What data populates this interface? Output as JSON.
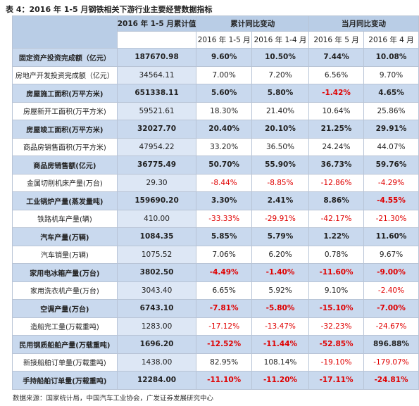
{
  "title": "表 4：2016 年 1-5 月钢铁相关下游行业主要经营数据指标",
  "table": {
    "header": {
      "group_cumulative_value": "2016 年 1-5 月累计值",
      "group_cumulative_yoy": "累计同比变动",
      "group_monthly_yoy": "当月同比变动",
      "sub": [
        "2016 年 1-5 月",
        "2016 年 1-4 月",
        "2016 年 5 月",
        "2016 年 4 月"
      ]
    },
    "rows": [
      {
        "emphasis": true,
        "cells": [
          "固定资产投资完成额（亿元）",
          "187670.98",
          "9.60%",
          "10.50%",
          "7.44%",
          "10.08%"
        ]
      },
      {
        "emphasis": false,
        "cells": [
          "房地产开发投资完成额（亿元）",
          "34564.11",
          "7.00%",
          "7.20%",
          "6.56%",
          "9.70%"
        ]
      },
      {
        "emphasis": true,
        "cells": [
          "房屋施工面积(万平方米)",
          "651338.11",
          "5.60%",
          "5.80%",
          "-1.42%",
          "4.65%"
        ]
      },
      {
        "emphasis": false,
        "cells": [
          "房屋新开工面积(万平方米)",
          "59521.61",
          "18.30%",
          "21.40%",
          "10.64%",
          "25.86%"
        ]
      },
      {
        "emphasis": true,
        "cells": [
          "房屋竣工面积(万平方米)",
          "32027.70",
          "20.40%",
          "20.10%",
          "21.25%",
          "29.91%"
        ]
      },
      {
        "emphasis": false,
        "cells": [
          "商品房销售面积(万平方米)",
          "47954.22",
          "33.20%",
          "36.50%",
          "24.24%",
          "44.07%"
        ]
      },
      {
        "emphasis": true,
        "cells": [
          "商品房销售额(亿元)",
          "36775.49",
          "50.70%",
          "55.90%",
          "36.73%",
          "59.76%"
        ]
      },
      {
        "emphasis": false,
        "cells": [
          "金属切削机床产量(万台)",
          "29.30",
          "-8.44%",
          "-8.85%",
          "-12.86%",
          "-4.29%"
        ]
      },
      {
        "emphasis": true,
        "cells": [
          "工业锅炉产量(蒸发量吨)",
          "159690.20",
          "3.30%",
          "2.41%",
          "8.86%",
          "-4.55%"
        ]
      },
      {
        "emphasis": false,
        "cells": [
          "铁路机车产量(辆)",
          "410.00",
          "-33.33%",
          "-29.91%",
          "-42.17%",
          "-21.30%"
        ]
      },
      {
        "emphasis": true,
        "cells": [
          "汽车产量(万辆)",
          "1084.35",
          "5.85%",
          "5.79%",
          "1.22%",
          "11.60%"
        ]
      },
      {
        "emphasis": false,
        "cells": [
          "汽车销量(万辆)",
          "1075.52",
          "7.06%",
          "6.20%",
          "0.78%",
          "9.67%"
        ]
      },
      {
        "emphasis": true,
        "cells": [
          "家用电冰箱产量(万台)",
          "3802.50",
          "-4.49%",
          "-1.40%",
          "-11.60%",
          "-9.00%"
        ]
      },
      {
        "emphasis": false,
        "cells": [
          "家用洗衣机产量(万台)",
          "3043.40",
          "6.65%",
          "5.92%",
          "9.10%",
          "-2.40%"
        ]
      },
      {
        "emphasis": true,
        "cells": [
          "空调产量(万台)",
          "6743.10",
          "-7.81%",
          "-5.80%",
          "-15.10%",
          "-7.00%"
        ]
      },
      {
        "emphasis": false,
        "cells": [
          "造船完工量(万载重吨)",
          "1283.00",
          "-17.12%",
          "-13.47%",
          "-32.23%",
          "-24.67%"
        ]
      },
      {
        "emphasis": true,
        "cells": [
          "民用钢质船舶产量(万载重吨)",
          "1696.20",
          "-12.52%",
          "-11.44%",
          "-52.85%",
          "896.88%"
        ]
      },
      {
        "emphasis": false,
        "cells": [
          "新接船舶订单量(万载重吨)",
          "1438.00",
          "82.95%",
          "108.14%",
          "-19.10%",
          "-179.07%"
        ]
      },
      {
        "emphasis": true,
        "cells": [
          "手持船舶订单量(万载重吨)",
          "12284.00",
          "-11.10%",
          "-11.20%",
          "-17.11%",
          "-24.81%"
        ]
      }
    ]
  },
  "source": "数据来源：国家统计局，中国汽车工业协会，广发证券发展研究中心"
}
